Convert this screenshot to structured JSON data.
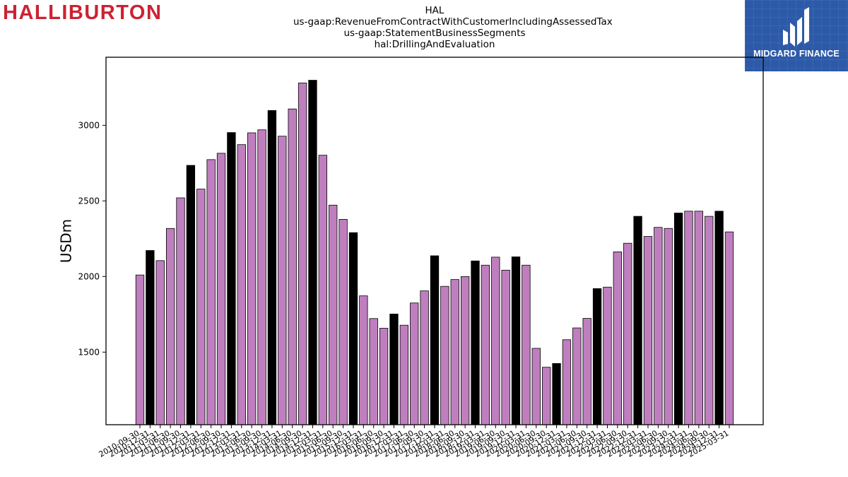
{
  "header": {
    "company_logo_text": "HALLIBURTON",
    "title_lines": [
      "HAL",
      "us-gaap:RevenueFromContractWithCustomerIncludingAssessedTax",
      "us-gaap:StatementBusinessSegments",
      "hal:DrillingAndEvaluation"
    ]
  },
  "badge": {
    "text": "MIDGARD FINANCE",
    "color": "#2d5aa8"
  },
  "chart_data": {
    "type": "bar",
    "ylabel": "USDm",
    "ylim": [
      1020,
      3450
    ],
    "yticks": [
      1500,
      2000,
      2500,
      3000
    ],
    "grid": false,
    "colors": {
      "quarter": "#bf7fbf",
      "annual": "#000000",
      "edge": "#000000"
    },
    "categories": [
      "2010-09-30",
      "2010-12-31",
      "2011-03-31",
      "2011-06-30",
      "2011-09-30",
      "2011-12-31",
      "2012-03-31",
      "2012-06-30",
      "2012-09-30",
      "2012-12-31",
      "2013-03-31",
      "2013-06-30",
      "2013-09-30",
      "2013-12-31",
      "2014-03-31",
      "2014-06-30",
      "2014-09-30",
      "2014-12-31",
      "2015-03-31",
      "2015-06-30",
      "2015-09-30",
      "2015-12-31",
      "2016-03-31",
      "2016-06-30",
      "2016-09-30",
      "2016-12-31",
      "2017-03-31",
      "2017-06-30",
      "2017-09-30",
      "2017-12-31",
      "2018-03-31",
      "2018-06-30",
      "2018-09-30",
      "2018-12-31",
      "2019-03-31",
      "2019-06-30",
      "2019-09-30",
      "2019-12-31",
      "2020-03-31",
      "2020-06-30",
      "2020-09-30",
      "2020-12-31",
      "2021-03-31",
      "2021-06-30",
      "2021-09-30",
      "2021-12-31",
      "2022-03-31",
      "2022-06-30",
      "2022-09-30",
      "2022-12-31",
      "2023-03-31",
      "2023-06-30",
      "2023-09-30",
      "2023-12-31",
      "2024-03-31",
      "2024-06-30",
      "2024-09-30",
      "2024-12-31",
      "2025-03-31"
    ],
    "tick_labels": [
      "2010-09-30",
      "2010-12-31",
      "2011-03-31",
      "2011-06-30",
      "2011-09-30",
      "2011-12-31",
      "2012-03-31",
      "2012-06-30",
      "2012-09-30",
      "2012-12-31",
      "2013-03-31",
      "2013-06-30",
      "2013-09-30",
      "2013-12-31",
      "2014-03-31",
      "2014-06-30",
      "2014-09-30",
      "2014-12-31",
      "2015-03-31",
      "2015-06-30",
      "2015-09-30",
      "2015-12-31",
      "2016-03-31",
      "2016-06-30",
      "2016-09-30",
      "2016-12-31",
      "2017-03-31",
      "2017-06-30",
      "2017-09-30",
      "2017-12-31",
      "2018-03-31",
      "2018-06-30",
      "2018-09-30",
      "2018-12-31",
      "2019-03-31",
      "2019-06-30",
      "2019-09-30",
      "2019-12-31",
      "2020-03-31",
      "2020-06-30",
      "2020-09-30",
      "2020-12-31",
      "2021-03-31",
      "2021-06-30",
      "2021-09-30",
      "2021-12-31",
      "2022-03-31",
      "2022-06-30",
      "2022-09-30",
      "2022-12-31",
      "2023-03-31",
      "2023-06-30",
      "2023-09-30",
      "2023-12-31",
      "2024-03-31",
      "2024-06-30",
      "2024-09-30",
      "2024-12-31",
      "2025-03-31"
    ],
    "values": [
      2010,
      2172,
      2105,
      2318,
      2520,
      2735,
      2578,
      2773,
      2815,
      2952,
      2872,
      2950,
      2970,
      3098,
      2928,
      3108,
      3280,
      3298,
      2802,
      2472,
      2378,
      2290,
      1872,
      1722,
      1658,
      1752,
      1678,
      1825,
      1905,
      2137,
      1935,
      1980,
      2000,
      2103,
      2075,
      2128,
      2042,
      2130,
      2075,
      1525,
      1400,
      1425,
      1582,
      1660,
      1723,
      1920,
      1930,
      2163,
      2220,
      2398,
      2265,
      2325,
      2318,
      2420,
      2432,
      2432,
      2398,
      2432,
      2295
    ],
    "highlight_annual": [
      false,
      true,
      false,
      false,
      false,
      true,
      false,
      false,
      false,
      true,
      false,
      false,
      false,
      true,
      false,
      false,
      false,
      true,
      false,
      false,
      false,
      true,
      false,
      false,
      false,
      true,
      false,
      false,
      false,
      true,
      false,
      false,
      false,
      true,
      false,
      false,
      false,
      true,
      false,
      false,
      false,
      true,
      false,
      false,
      false,
      true,
      false,
      false,
      false,
      true,
      false,
      false,
      false,
      true,
      false,
      false,
      false,
      true,
      false
    ]
  }
}
